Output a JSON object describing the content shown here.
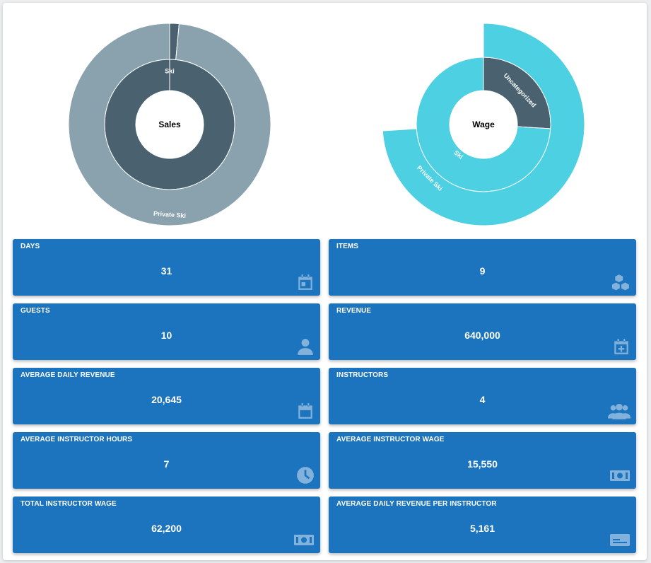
{
  "chart_data": [
    {
      "type": "sunburst",
      "center_label": "Sales",
      "rings": [
        {
          "level": "inner",
          "segments": [
            {
              "name": "Ski",
              "value": 100,
              "color": "#4a6270"
            }
          ]
        },
        {
          "level": "outer",
          "segments": [
            {
              "name": "",
              "value": 1.5,
              "color": "#4a6270"
            },
            {
              "name": "Private Ski",
              "value": 98.5,
              "color": "#8aa1ae"
            }
          ]
        }
      ]
    },
    {
      "type": "sunburst",
      "center_label": "Wage",
      "rings": [
        {
          "level": "inner",
          "segments": [
            {
              "name": "Uncategorized",
              "value": 26,
              "color": "#4a6270"
            },
            {
              "name": "Ski",
              "value": 74,
              "color": "#4dd0e1"
            }
          ]
        },
        {
          "level": "outer",
          "segments": [
            {
              "name": "Private Ski",
              "value": 74,
              "color": "#4dd0e1"
            }
          ]
        }
      ]
    }
  ],
  "cards": [
    {
      "title": "DAYS",
      "value": "31",
      "icon": "calendar-icon"
    },
    {
      "title": "ITEMS",
      "value": "9",
      "icon": "boxes-icon"
    },
    {
      "title": "GUESTS",
      "value": "10",
      "icon": "person-icon"
    },
    {
      "title": "REVENUE",
      "value": "640,000",
      "icon": "calendar-plus-icon"
    },
    {
      "title": "AVERAGE DAILY REVENUE",
      "value": "20,645",
      "icon": "calendar-icon"
    },
    {
      "title": "INSTRUCTORS",
      "value": "4",
      "icon": "people-icon"
    },
    {
      "title": "AVERAGE INSTRUCTOR HOURS",
      "value": "7",
      "icon": "clock-icon"
    },
    {
      "title": "AVERAGE INSTRUCTOR WAGE",
      "value": "15,550",
      "icon": "money-icon"
    },
    {
      "title": "TOTAL INSTRUCTOR WAGE",
      "value": "62,200",
      "icon": "money-icon"
    },
    {
      "title": "AVERAGE DAILY REVENUE PER INSTRUCTOR",
      "value": "5,161",
      "icon": "card-icon"
    }
  ],
  "colors": {
    "card_bg": "#1c74bf",
    "panel_bg": "#ffffff"
  }
}
